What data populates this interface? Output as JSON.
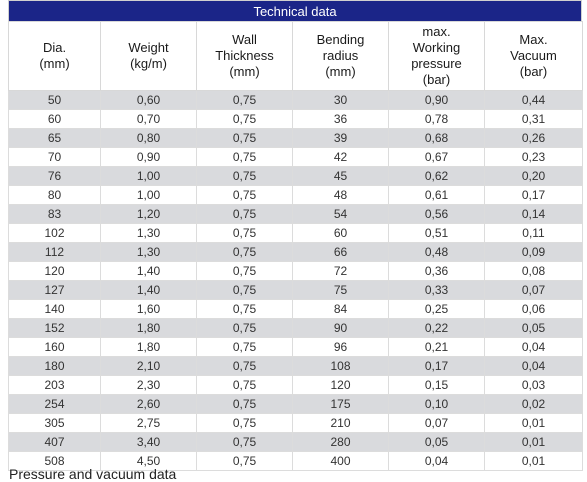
{
  "title": "Technical data",
  "headers": [
    [
      "Dia.",
      "(mm)"
    ],
    [
      "Weight",
      "(kg/m)"
    ],
    [
      "Wall",
      "Thickness",
      "(mm)"
    ],
    [
      "Bending",
      "radius",
      "(mm)"
    ],
    [
      "max.",
      "Working",
      "pressure",
      "(bar)"
    ],
    [
      "Max.",
      "Vacuum",
      "(bar)"
    ]
  ],
  "rows": [
    [
      "50",
      "0,60",
      "0,75",
      "30",
      "0,90",
      "0,44"
    ],
    [
      "60",
      "0,70",
      "0,75",
      "36",
      "0,78",
      "0,31"
    ],
    [
      "65",
      "0,80",
      "0,75",
      "39",
      "0,68",
      "0,26"
    ],
    [
      "70",
      "0,90",
      "0,75",
      "42",
      "0,67",
      "0,23"
    ],
    [
      "76",
      "1,00",
      "0,75",
      "45",
      "0,62",
      "0,20"
    ],
    [
      "80",
      "1,00",
      "0,75",
      "48",
      "0,61",
      "0,17"
    ],
    [
      "83",
      "1,20",
      "0,75",
      "54",
      "0,56",
      "0,14"
    ],
    [
      "102",
      "1,30",
      "0,75",
      "60",
      "0,51",
      "0,11"
    ],
    [
      "112",
      "1,30",
      "0,75",
      "66",
      "0,48",
      "0,09"
    ],
    [
      "120",
      "1,40",
      "0,75",
      "72",
      "0,36",
      "0,08"
    ],
    [
      "127",
      "1,40",
      "0,75",
      "75",
      "0,33",
      "0,07"
    ],
    [
      "140",
      "1,60",
      "0,75",
      "84",
      "0,25",
      "0,06"
    ],
    [
      "152",
      "1,80",
      "0,75",
      "90",
      "0,22",
      "0,05"
    ],
    [
      "160",
      "1,80",
      "0,75",
      "96",
      "0,21",
      "0,04"
    ],
    [
      "180",
      "2,10",
      "0,75",
      "108",
      "0,17",
      "0,04"
    ],
    [
      "203",
      "2,30",
      "0,75",
      "120",
      "0,15",
      "0,03"
    ],
    [
      "254",
      "2,60",
      "0,75",
      "175",
      "0,10",
      "0,02"
    ],
    [
      "305",
      "2,75",
      "0,75",
      "210",
      "0,07",
      "0,01"
    ],
    [
      "407",
      "3,40",
      "0,75",
      "280",
      "0,05",
      "0,01"
    ],
    [
      "508",
      "4,50",
      "0,75",
      "400",
      "0,04",
      "0,01"
    ]
  ],
  "footer_text": "Pressure and vacuum data",
  "colors": {
    "title_bg": "#1b2588",
    "stripe": "#d9dadd"
  }
}
